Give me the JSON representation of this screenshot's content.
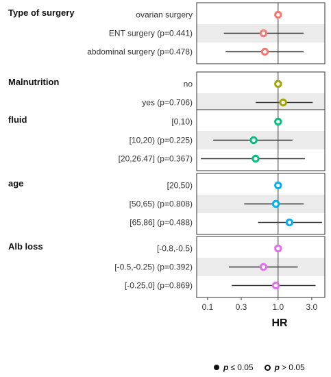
{
  "chart_data": {
    "type": "forest",
    "xlabel": "HR",
    "xscale": "log",
    "xlim": [
      0.07,
      4.6
    ],
    "xticks": [
      0.1,
      0.3,
      1.0,
      3.0
    ],
    "xtick_labels": [
      "0.1",
      "0.3",
      "1.0",
      "3.0"
    ],
    "reference_line": 1.0,
    "groups": [
      {
        "name": "Type of surgery",
        "color": "#F8766D",
        "rows": [
          {
            "label": "ovarian surgery",
            "hr": 1.0,
            "lo": null,
            "hi": null,
            "significant": false
          },
          {
            "label": "ENT surgery (p=0.441)",
            "hr": 0.62,
            "lo": 0.17,
            "hi": 2.3,
            "significant": false
          },
          {
            "label": "abdominal surgery (p=0.478)",
            "hr": 0.65,
            "lo": 0.18,
            "hi": 2.3,
            "significant": false
          }
        ]
      },
      {
        "name": "Malnutrition",
        "color": "#A3A500",
        "rows": [
          {
            "label": "no",
            "hr": 1.0,
            "lo": null,
            "hi": null,
            "significant": false
          },
          {
            "label": "yes (p=0.706)",
            "hr": 1.18,
            "lo": 0.48,
            "hi": 3.1,
            "significant": false
          }
        ]
      },
      {
        "name": "fluid",
        "color": "#00BF7D",
        "rows": [
          {
            "label": "[0,10)",
            "hr": 1.0,
            "lo": null,
            "hi": null,
            "significant": false
          },
          {
            "label": "[10,20) (p=0.225)",
            "hr": 0.45,
            "lo": 0.12,
            "hi": 1.6,
            "significant": false
          },
          {
            "label": "[20,26.47] (p=0.367)",
            "hr": 0.48,
            "lo": 0.08,
            "hi": 2.4,
            "significant": false
          }
        ]
      },
      {
        "name": "age",
        "color": "#00B0F6",
        "rows": [
          {
            "label": "[20,50)",
            "hr": 1.0,
            "lo": null,
            "hi": null,
            "significant": false
          },
          {
            "label": "[50,65) (p=0.808)",
            "hr": 0.93,
            "lo": 0.33,
            "hi": 2.3,
            "significant": false
          },
          {
            "label": "[65,86] (p=0.488)",
            "hr": 1.45,
            "lo": 0.52,
            "hi": 4.2,
            "significant": false
          }
        ]
      },
      {
        "name": "Alb loss",
        "color": "#E76BF3",
        "rows": [
          {
            "label": "[-0.8,-0.5)",
            "hr": 1.0,
            "lo": null,
            "hi": null,
            "significant": false
          },
          {
            "label": "[-0.5,-0.25) (p=0.392)",
            "hr": 0.62,
            "lo": 0.2,
            "hi": 1.9,
            "significant": false
          },
          {
            "label": "[-0.25,0] (p=0.869)",
            "hr": 0.93,
            "lo": 0.22,
            "hi": 3.4,
            "significant": false
          }
        ]
      }
    ],
    "legend": {
      "position": "bottom-right",
      "significant": {
        "p": "p",
        "text": "≤ 0.05"
      },
      "not_significant": {
        "p": "p",
        "text": "> 0.05"
      }
    }
  }
}
